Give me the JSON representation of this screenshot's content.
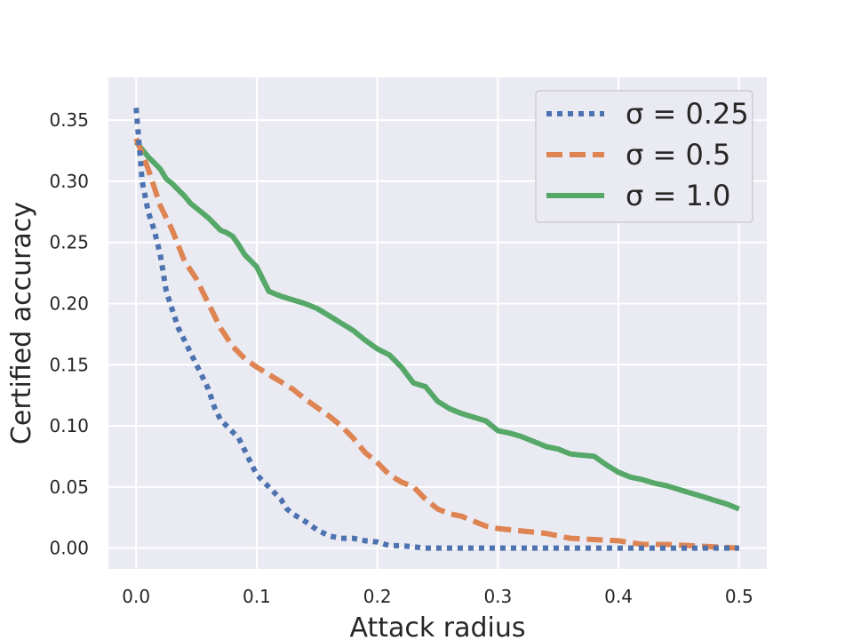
{
  "chart_data": {
    "type": "line",
    "title": "",
    "xlabel": "Attack radius",
    "ylabel": "Certified accuracy",
    "xlim": [
      -0.023,
      0.523
    ],
    "ylim": [
      -0.017,
      0.385
    ],
    "xticks": [
      0.0,
      0.1,
      0.2,
      0.3,
      0.4,
      0.5
    ],
    "xtick_labels": [
      "0.0",
      "0.1",
      "0.2",
      "0.3",
      "0.4",
      "0.5"
    ],
    "yticks": [
      0.0,
      0.05,
      0.1,
      0.15,
      0.2,
      0.25,
      0.3,
      0.35
    ],
    "ytick_labels": [
      "0.00",
      "0.05",
      "0.10",
      "0.15",
      "0.20",
      "0.25",
      "0.30",
      "0.35"
    ],
    "grid": true,
    "background": "#eaeaf2",
    "legend_position": "top-right",
    "series": [
      {
        "name": "σ = 0.25",
        "color": "#4c72b0",
        "style": "dotted",
        "x": [
          0.0,
          0.005,
          0.01,
          0.015,
          0.02,
          0.025,
          0.03,
          0.035,
          0.04,
          0.045,
          0.05,
          0.055,
          0.06,
          0.065,
          0.07,
          0.075,
          0.08,
          0.085,
          0.09,
          0.095,
          0.1,
          0.105,
          0.11,
          0.115,
          0.12,
          0.125,
          0.13,
          0.14,
          0.15,
          0.16,
          0.17,
          0.18,
          0.19,
          0.2,
          0.21,
          0.22,
          0.23,
          0.24,
          0.3,
          0.4,
          0.5
        ],
        "y": [
          0.36,
          0.3,
          0.275,
          0.26,
          0.24,
          0.21,
          0.195,
          0.18,
          0.17,
          0.16,
          0.15,
          0.14,
          0.13,
          0.115,
          0.105,
          0.1,
          0.095,
          0.09,
          0.08,
          0.07,
          0.06,
          0.055,
          0.05,
          0.045,
          0.04,
          0.032,
          0.028,
          0.022,
          0.015,
          0.01,
          0.008,
          0.008,
          0.006,
          0.005,
          0.002,
          0.002,
          0.001,
          0.0,
          0.0,
          0.0,
          0.0
        ]
      },
      {
        "name": "σ = 0.5",
        "color": "#dd8452",
        "style": "dashed",
        "x": [
          0.0,
          0.01,
          0.02,
          0.03,
          0.04,
          0.05,
          0.06,
          0.07,
          0.08,
          0.09,
          0.1,
          0.11,
          0.12,
          0.13,
          0.14,
          0.15,
          0.16,
          0.17,
          0.18,
          0.19,
          0.2,
          0.21,
          0.22,
          0.23,
          0.24,
          0.25,
          0.26,
          0.27,
          0.28,
          0.29,
          0.3,
          0.32,
          0.34,
          0.36,
          0.38,
          0.4,
          0.42,
          0.44,
          0.46,
          0.48,
          0.5
        ],
        "y": [
          0.335,
          0.31,
          0.28,
          0.26,
          0.235,
          0.22,
          0.2,
          0.18,
          0.165,
          0.155,
          0.148,
          0.142,
          0.136,
          0.13,
          0.122,
          0.115,
          0.108,
          0.1,
          0.09,
          0.078,
          0.07,
          0.06,
          0.054,
          0.05,
          0.04,
          0.032,
          0.028,
          0.026,
          0.022,
          0.018,
          0.016,
          0.014,
          0.012,
          0.008,
          0.007,
          0.006,
          0.003,
          0.003,
          0.002,
          0.001,
          0.0
        ]
      },
      {
        "name": "σ = 1.0",
        "color": "#55a868",
        "style": "solid",
        "x": [
          0.0,
          0.01,
          0.02,
          0.025,
          0.03,
          0.04,
          0.045,
          0.05,
          0.055,
          0.06,
          0.065,
          0.07,
          0.075,
          0.08,
          0.085,
          0.09,
          0.095,
          0.1,
          0.105,
          0.11,
          0.115,
          0.12,
          0.13,
          0.14,
          0.15,
          0.16,
          0.17,
          0.18,
          0.19,
          0.2,
          0.21,
          0.22,
          0.23,
          0.24,
          0.25,
          0.26,
          0.27,
          0.28,
          0.29,
          0.3,
          0.31,
          0.32,
          0.33,
          0.34,
          0.35,
          0.36,
          0.37,
          0.38,
          0.39,
          0.4,
          0.41,
          0.42,
          0.43,
          0.44,
          0.45,
          0.46,
          0.47,
          0.48,
          0.49,
          0.5
        ],
        "y": [
          0.332,
          0.32,
          0.31,
          0.302,
          0.298,
          0.288,
          0.282,
          0.278,
          0.274,
          0.27,
          0.265,
          0.26,
          0.258,
          0.255,
          0.248,
          0.24,
          0.235,
          0.23,
          0.22,
          0.21,
          0.208,
          0.206,
          0.203,
          0.2,
          0.196,
          0.19,
          0.184,
          0.178,
          0.17,
          0.163,
          0.158,
          0.148,
          0.135,
          0.132,
          0.12,
          0.114,
          0.11,
          0.107,
          0.104,
          0.096,
          0.094,
          0.091,
          0.087,
          0.083,
          0.081,
          0.077,
          0.076,
          0.075,
          0.068,
          0.062,
          0.058,
          0.056,
          0.053,
          0.051,
          0.048,
          0.045,
          0.042,
          0.039,
          0.036,
          0.032
        ]
      }
    ]
  }
}
